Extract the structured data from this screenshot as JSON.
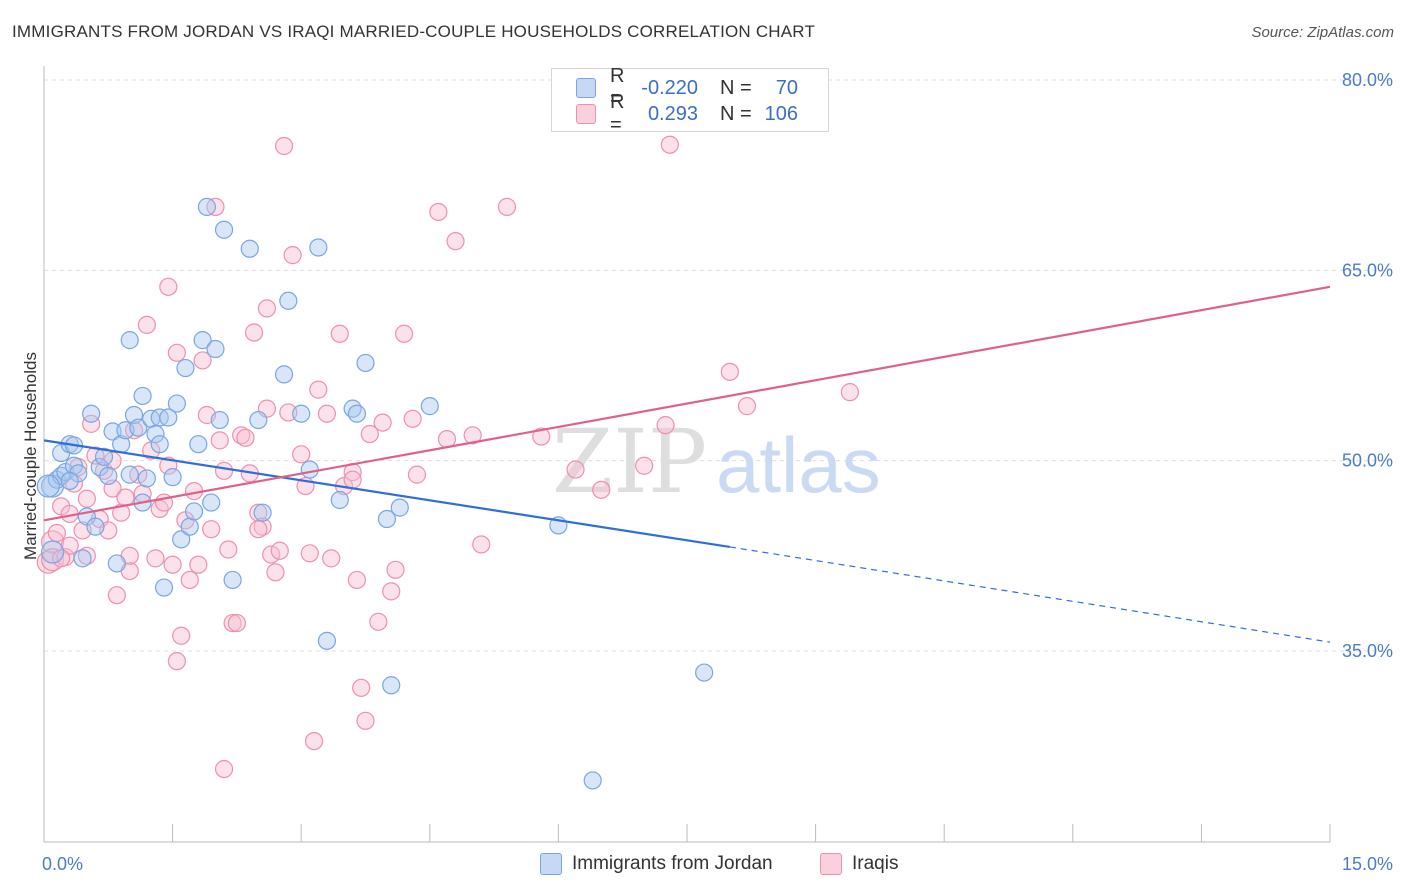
{
  "title": "IMMIGRANTS FROM JORDAN VS IRAQI MARRIED-COUPLE HOUSEHOLDS CORRELATION CHART",
  "source": "Source: ZipAtlas.com",
  "watermark": {
    "zip": "ZIP",
    "atlas": "atlas"
  },
  "legend": {
    "rows": [
      {
        "r_label": "R =",
        "r_value": "-0.220",
        "n_label": "N =",
        "n_value": "70",
        "color": "#a9c7ef",
        "border": "#6f9bd8"
      },
      {
        "r_label": "R =",
        "r_value": "0.293",
        "n_label": "N =",
        "n_value": "106",
        "color": "#f7bfd0",
        "border": "#e88aa8"
      }
    ]
  },
  "bottom_legend": {
    "series1": "Immigrants from Jordan",
    "series2": "Iraqis"
  },
  "chart_data": {
    "type": "scatter",
    "title": "IMMIGRANTS FROM JORDAN VS IRAQI MARRIED-COUPLE HOUSEHOLDS CORRELATION CHART",
    "xlabel": "",
    "ylabel": "Married-couple Households",
    "xlim": [
      0,
      15
    ],
    "ylim": [
      20,
      82
    ],
    "x_tick_labels": [
      "0.0%",
      "15.0%"
    ],
    "y_tick_labels": [
      "35.0%",
      "50.0%",
      "65.0%",
      "80.0%"
    ],
    "y_ticks": [
      35,
      50,
      65,
      80
    ],
    "grid": true,
    "series": [
      {
        "name": "Immigrants from Jordan",
        "color": "#7aa5e3",
        "fill": "#a9c7ef",
        "points": [
          [
            0.1,
            42.8
          ],
          [
            0.1,
            48.0
          ],
          [
            0.15,
            48.5
          ],
          [
            0.2,
            48.8
          ],
          [
            0.2,
            50.6
          ],
          [
            0.25,
            49.1
          ],
          [
            0.3,
            51.3
          ],
          [
            0.35,
            51.2
          ],
          [
            0.35,
            49.6
          ],
          [
            0.4,
            49.0
          ],
          [
            0.45,
            42.3
          ],
          [
            0.5,
            45.6
          ],
          [
            0.55,
            53.7
          ],
          [
            0.6,
            44.8
          ],
          [
            0.65,
            49.5
          ],
          [
            0.7,
            50.3
          ],
          [
            0.75,
            48.8
          ],
          [
            0.8,
            52.3
          ],
          [
            0.85,
            41.9
          ],
          [
            0.9,
            51.3
          ],
          [
            0.95,
            52.4
          ],
          [
            1.0,
            59.5
          ],
          [
            1.0,
            48.9
          ],
          [
            1.05,
            53.6
          ],
          [
            1.1,
            52.6
          ],
          [
            1.15,
            46.7
          ],
          [
            1.15,
            55.1
          ],
          [
            1.2,
            48.6
          ],
          [
            1.25,
            53.3
          ],
          [
            1.3,
            52.1
          ],
          [
            1.35,
            51.3
          ],
          [
            1.35,
            53.4
          ],
          [
            1.4,
            40.0
          ],
          [
            1.45,
            53.4
          ],
          [
            1.5,
            48.7
          ],
          [
            1.55,
            54.5
          ],
          [
            1.6,
            43.8
          ],
          [
            1.65,
            57.3
          ],
          [
            1.7,
            44.8
          ],
          [
            1.75,
            46.0
          ],
          [
            1.8,
            51.3
          ],
          [
            1.85,
            59.5
          ],
          [
            1.9,
            70.0
          ],
          [
            1.95,
            46.7
          ],
          [
            2.0,
            58.8
          ],
          [
            2.05,
            53.2
          ],
          [
            2.1,
            68.2
          ],
          [
            2.2,
            40.6
          ],
          [
            2.4,
            66.7
          ],
          [
            2.5,
            53.2
          ],
          [
            2.55,
            45.9
          ],
          [
            2.8,
            56.8
          ],
          [
            2.85,
            62.6
          ],
          [
            3.0,
            53.7
          ],
          [
            3.1,
            49.3
          ],
          [
            3.2,
            66.8
          ],
          [
            3.3,
            35.8
          ],
          [
            3.45,
            46.9
          ],
          [
            3.6,
            54.1
          ],
          [
            3.65,
            53.7
          ],
          [
            3.75,
            57.7
          ],
          [
            4.0,
            45.4
          ],
          [
            4.05,
            32.3
          ],
          [
            4.15,
            46.3
          ],
          [
            4.5,
            54.3
          ],
          [
            6.0,
            44.9
          ],
          [
            7.7,
            33.3
          ],
          [
            6.4,
            24.8
          ],
          [
            0.05,
            48.0
          ],
          [
            0.3,
            48.4
          ]
        ]
      },
      {
        "name": "Iraqis",
        "color": "#ef8fad",
        "fill": "#f7bfd0",
        "points": [
          [
            0.05,
            42.0
          ],
          [
            0.1,
            43.6
          ],
          [
            0.1,
            42.2
          ],
          [
            0.15,
            44.3
          ],
          [
            0.2,
            46.4
          ],
          [
            0.25,
            42.4
          ],
          [
            0.3,
            45.8
          ],
          [
            0.3,
            43.3
          ],
          [
            0.35,
            48.2
          ],
          [
            0.4,
            49.5
          ],
          [
            0.45,
            44.5
          ],
          [
            0.5,
            42.5
          ],
          [
            0.55,
            52.9
          ],
          [
            0.6,
            50.4
          ],
          [
            0.65,
            45.4
          ],
          [
            0.7,
            49.2
          ],
          [
            0.75,
            44.5
          ],
          [
            0.8,
            47.8
          ],
          [
            0.85,
            39.4
          ],
          [
            0.9,
            45.9
          ],
          [
            0.95,
            47.1
          ],
          [
            1.0,
            41.3
          ],
          [
            1.05,
            52.4
          ],
          [
            1.1,
            48.9
          ],
          [
            1.15,
            47.4
          ],
          [
            1.2,
            60.7
          ],
          [
            1.25,
            50.8
          ],
          [
            1.3,
            42.3
          ],
          [
            1.35,
            46.2
          ],
          [
            1.4,
            46.7
          ],
          [
            1.45,
            63.7
          ],
          [
            1.5,
            41.8
          ],
          [
            1.55,
            58.5
          ],
          [
            1.55,
            34.2
          ],
          [
            1.6,
            36.2
          ],
          [
            1.65,
            45.3
          ],
          [
            1.7,
            40.6
          ],
          [
            1.75,
            47.6
          ],
          [
            1.8,
            41.8
          ],
          [
            1.85,
            57.9
          ],
          [
            1.9,
            53.6
          ],
          [
            1.95,
            44.6
          ],
          [
            2.0,
            70.0
          ],
          [
            2.05,
            51.6
          ],
          [
            2.1,
            49.2
          ],
          [
            2.15,
            43.0
          ],
          [
            2.2,
            37.2
          ],
          [
            2.25,
            37.2
          ],
          [
            2.3,
            52.0
          ],
          [
            2.35,
            51.8
          ],
          [
            2.4,
            49.0
          ],
          [
            2.45,
            60.1
          ],
          [
            2.5,
            45.9
          ],
          [
            2.55,
            44.8
          ],
          [
            2.6,
            54.1
          ],
          [
            2.6,
            62.0
          ],
          [
            2.65,
            42.6
          ],
          [
            2.7,
            41.2
          ],
          [
            2.75,
            42.9
          ],
          [
            2.8,
            74.8
          ],
          [
            2.85,
            53.8
          ],
          [
            2.9,
            66.2
          ],
          [
            3.0,
            50.5
          ],
          [
            3.05,
            48.0
          ],
          [
            3.1,
            42.7
          ],
          [
            3.15,
            27.9
          ],
          [
            3.2,
            55.6
          ],
          [
            3.3,
            53.7
          ],
          [
            3.35,
            42.3
          ],
          [
            3.45,
            60.0
          ],
          [
            3.5,
            48.0
          ],
          [
            3.6,
            49.1
          ],
          [
            3.65,
            40.6
          ],
          [
            3.7,
            32.1
          ],
          [
            3.75,
            29.5
          ],
          [
            3.8,
            52.1
          ],
          [
            3.9,
            37.3
          ],
          [
            3.95,
            53.0
          ],
          [
            4.05,
            39.7
          ],
          [
            4.1,
            41.4
          ],
          [
            4.2,
            60.0
          ],
          [
            4.3,
            53.3
          ],
          [
            4.35,
            48.9
          ],
          [
            4.6,
            69.6
          ],
          [
            4.7,
            51.7
          ],
          [
            4.8,
            67.3
          ],
          [
            5.0,
            52.0
          ],
          [
            5.1,
            43.4
          ],
          [
            5.4,
            70.0
          ],
          [
            5.8,
            51.9
          ],
          [
            6.2,
            49.3
          ],
          [
            6.5,
            47.7
          ],
          [
            7.0,
            49.6
          ],
          [
            7.25,
            52.8
          ],
          [
            7.3,
            74.9
          ],
          [
            8.0,
            57.0
          ],
          [
            8.2,
            54.3
          ],
          [
            9.4,
            55.4
          ],
          [
            2.1,
            25.7
          ],
          [
            1.45,
            49.6
          ],
          [
            0.8,
            50.0
          ],
          [
            1.0,
            42.5
          ],
          [
            2.5,
            44.6
          ],
          [
            3.6,
            48.5
          ],
          [
            0.5,
            47.0
          ],
          [
            0.2,
            42.3
          ]
        ]
      }
    ],
    "trend_lines": [
      {
        "name": "Immigrants from Jordan",
        "color": "#2f6fd6",
        "x": [
          0,
          8.0
        ],
        "y": [
          51.6,
          43.2
        ],
        "dashed_to": [
          15.0,
          35.7
        ]
      },
      {
        "name": "Iraqis",
        "color": "#e0608a",
        "x": [
          0,
          15.0
        ],
        "y": [
          45.3,
          63.7
        ]
      }
    ]
  }
}
